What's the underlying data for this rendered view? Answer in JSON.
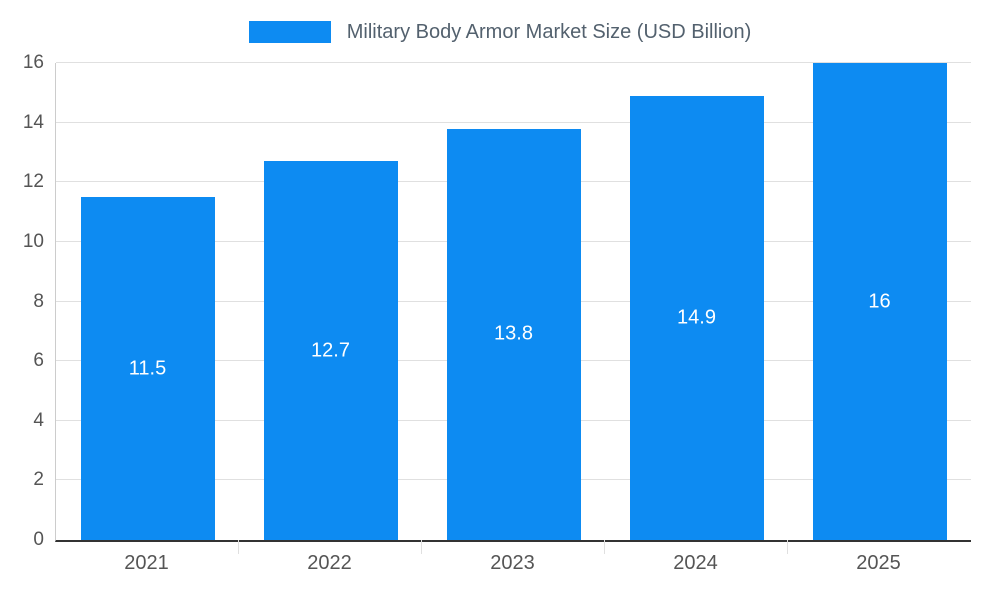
{
  "title": "Military Body Armor Market Size (USD Billion)",
  "chart_data": {
    "type": "bar",
    "categories": [
      "2021",
      "2022",
      "2023",
      "2024",
      "2025"
    ],
    "values": [
      11.5,
      12.7,
      13.8,
      14.9,
      16
    ],
    "series": [
      {
        "name": "Military Body Armor Market Size (USD Billion)",
        "values": [
          11.5,
          12.7,
          13.8,
          14.9,
          16
        ]
      }
    ],
    "title": "Military Body Armor Market Size (USD Billion)",
    "xlabel": "",
    "ylabel": "",
    "ylim": [
      0,
      16
    ],
    "ytick_step": 2,
    "yticks": [
      0,
      2,
      4,
      6,
      8,
      10,
      12,
      14,
      16
    ],
    "grid": true,
    "legend_position": "top",
    "value_labels": [
      "11.5",
      "12.7",
      "13.8",
      "14.9",
      "16"
    ],
    "colors": {
      "bar": "#0d8bf2",
      "title_text": "#53616e",
      "axis_label": "#555555",
      "grid": "#e0e0e0",
      "baseline": "#333333",
      "value_label": "#ffffff",
      "background": "#ffffff"
    }
  }
}
